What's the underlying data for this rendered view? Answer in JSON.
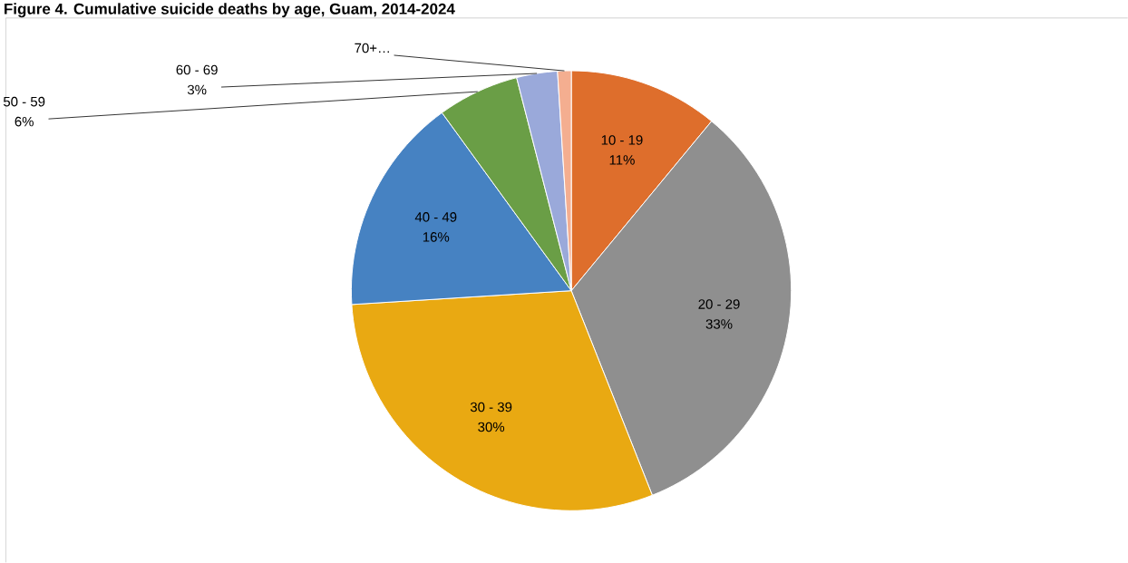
{
  "chart_data": {
    "type": "pie",
    "title": "Figure 4. Cumulative suicide deaths by age, Guam, 2014-2024",
    "categories": [
      "10 - 19",
      "20 - 29",
      "30 - 39",
      "40 - 49",
      "50 - 59",
      "60 - 69",
      "70+…"
    ],
    "values": [
      11,
      33,
      30,
      16,
      6,
      3,
      1
    ],
    "value_labels": [
      "11%",
      "33%",
      "30%",
      "16%",
      "6%",
      "3%",
      null
    ],
    "colors": [
      "#de6e2c",
      "#8f8f8f",
      "#e9a912",
      "#4682c2",
      "#6a9e46",
      "#9aa9da",
      "#f4ae90"
    ]
  }
}
